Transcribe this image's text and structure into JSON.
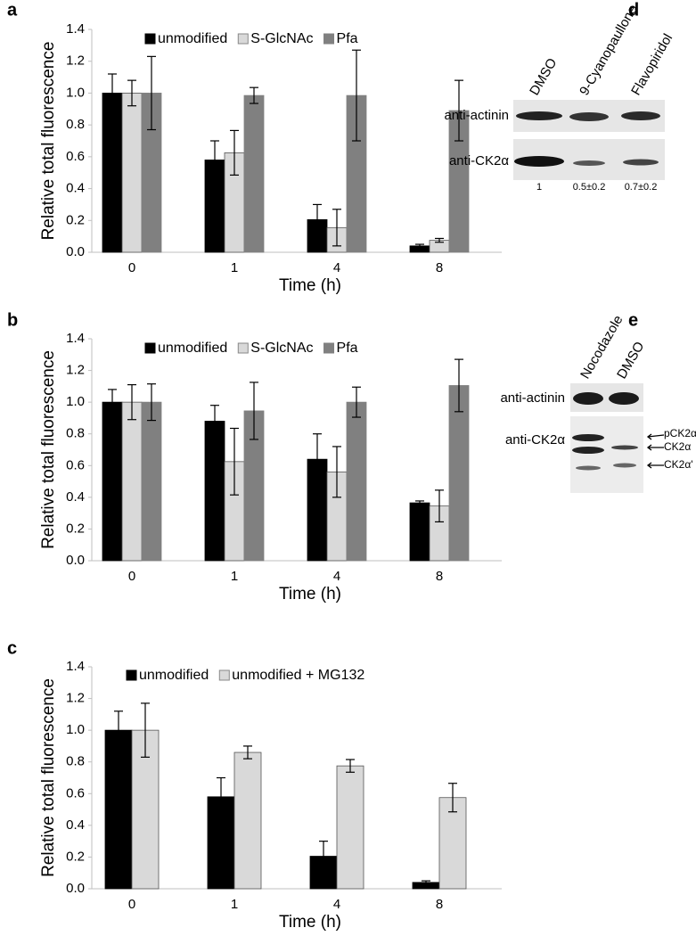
{
  "chart_data": [
    {
      "type": "bar",
      "panel_label": "a",
      "y_label": "Relative total fluorescence",
      "x_label": "Time (h)",
      "categories": [
        "0",
        "1",
        "4",
        "8"
      ],
      "legend": "top",
      "ylim": [
        0,
        1.4
      ],
      "yticks": [
        {
          "value": 0,
          "label": "0.0"
        },
        0.2,
        0.4,
        0.6,
        0.8,
        {
          "value": 1,
          "label": "1.0"
        },
        1.2,
        1.4
      ],
      "series": [
        {
          "name": "unmodified",
          "color": "#000000",
          "values": [
            1.0,
            0.58,
            0.205,
            0.04
          ],
          "errors": [
            0.12,
            0.12,
            0.095,
            0.01
          ]
        },
        {
          "name": "S-GlcNAc",
          "color": "#d9d9d9",
          "values": [
            1.0,
            0.625,
            0.155,
            0.075
          ],
          "errors": [
            0.08,
            0.14,
            0.115,
            0.012
          ]
        },
        {
          "name": "Pfa",
          "color": "#808080",
          "values": [
            1.0,
            0.985,
            0.985,
            0.89
          ],
          "errors": [
            0.23,
            0.05,
            0.285,
            0.19
          ]
        }
      ]
    },
    {
      "type": "bar",
      "panel_label": "b",
      "y_label": "Relative total fluorescence",
      "x_label": "Time (h)",
      "categories": [
        "0",
        "1",
        "4",
        "8"
      ],
      "legend": "top",
      "ylim": [
        0,
        1.4
      ],
      "yticks": [
        {
          "value": 0,
          "label": "0.0"
        },
        0.2,
        0.4,
        0.6,
        0.8,
        {
          "value": 1,
          "label": "1.0"
        },
        1.2,
        1.4
      ],
      "series": [
        {
          "name": "unmodified",
          "color": "#000000",
          "values": [
            1.0,
            0.88,
            0.64,
            0.365
          ],
          "errors": [
            0.08,
            0.1,
            0.16,
            0.012
          ]
        },
        {
          "name": "S-GlcNAc",
          "color": "#d9d9d9",
          "values": [
            1.0,
            0.625,
            0.56,
            0.345
          ],
          "errors": [
            0.11,
            0.21,
            0.16,
            0.1
          ]
        },
        {
          "name": "Pfa",
          "color": "#808080",
          "values": [
            1.0,
            0.945,
            1.0,
            1.105
          ],
          "errors": [
            0.115,
            0.18,
            0.095,
            0.165
          ]
        }
      ]
    },
    {
      "type": "bar",
      "panel_label": "c",
      "y_label": "Relative total fluorescence",
      "x_label": "Time (h)",
      "categories": [
        "0",
        "1",
        "4",
        "8"
      ],
      "legend": "top",
      "ylim": [
        0,
        1.4
      ],
      "yticks": [
        {
          "value": 0,
          "label": "0.0"
        },
        0.2,
        0.4,
        0.6,
        0.8,
        {
          "value": 1,
          "label": "1.0"
        },
        1.2,
        1.4
      ],
      "series": [
        {
          "name": "unmodified",
          "color": "#000000",
          "values": [
            1.0,
            0.58,
            0.205,
            0.04
          ],
          "errors": [
            0.12,
            0.12,
            0.095,
            0.01
          ]
        },
        {
          "name": "unmodified + MG132",
          "color": "#d9d9d9",
          "values": [
            1.0,
            0.86,
            0.775,
            0.575
          ],
          "errors": [
            0.17,
            0.04,
            0.04,
            0.09
          ]
        }
      ]
    }
  ],
  "blots": [
    {
      "panel_label": "d",
      "lanes": [
        "DMSO",
        "9-Cyanopaullone",
        "Flavopiridol"
      ],
      "rows": [
        "anti-actinin",
        "anti-CK2α"
      ],
      "quantification": [
        "1",
        "0.5±0.2",
        "0.7±0.2"
      ]
    },
    {
      "panel_label": "e",
      "lanes": [
        "Nocodazole",
        "DMSO"
      ],
      "rows": [
        "anti-actinin",
        "anti-CK2α"
      ],
      "bands": [
        "pCK2α",
        "CK2α",
        "CK2α'"
      ]
    }
  ]
}
